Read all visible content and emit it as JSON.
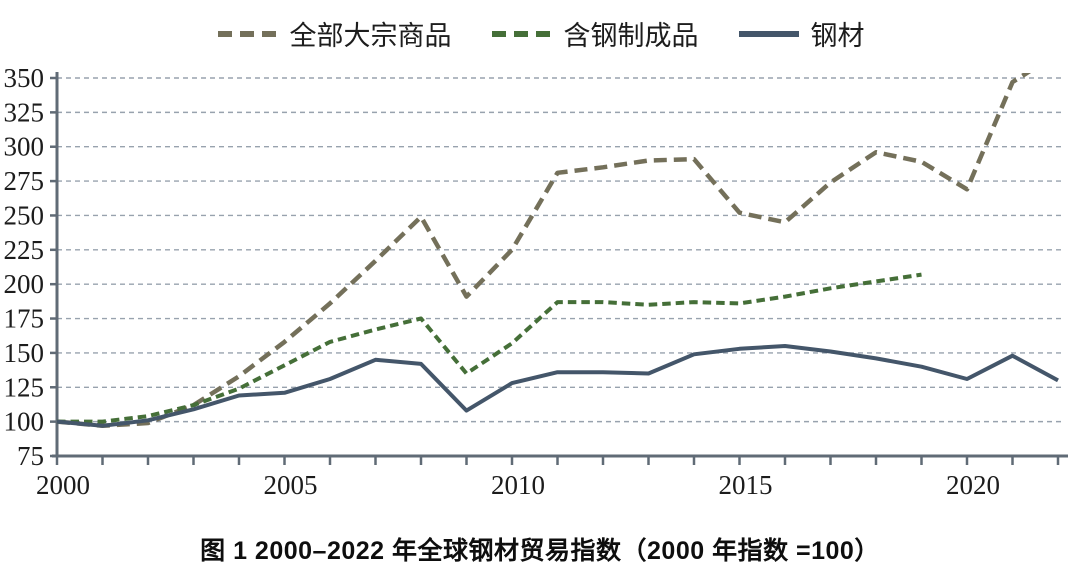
{
  "chart_data": {
    "type": "line",
    "title": "",
    "caption": "图 1  2000–2022 年全球钢材贸易指数（2000 年指数 =100）",
    "x": [
      2000,
      2001,
      2002,
      2003,
      2004,
      2005,
      2006,
      2007,
      2008,
      2009,
      2010,
      2011,
      2012,
      2013,
      2014,
      2015,
      2016,
      2017,
      2018,
      2019,
      2020,
      2021,
      2022
    ],
    "xlim": [
      2000,
      2022
    ],
    "ylim": [
      75,
      350
    ],
    "yticks": [
      75,
      100,
      125,
      150,
      175,
      200,
      225,
      250,
      275,
      300,
      325,
      350
    ],
    "xtick_labels": [
      2000,
      2005,
      2010,
      2015,
      2020
    ],
    "grid": "dashed horizontal",
    "legend_position": "top center",
    "axis_color": "#606b76",
    "grid_color": "#98a2ae",
    "series": [
      {
        "name": "全部大宗商品",
        "style": "dashed",
        "color": "#74705a",
        "dash": "13 7",
        "width": 4.5,
        "values": [
          100,
          97,
          99,
          112,
          133,
          158,
          186,
          217,
          249,
          191,
          225,
          281,
          285,
          290,
          291,
          252,
          245,
          274,
          296,
          289,
          269,
          347,
          368
        ]
      },
      {
        "name": "含钢制成品",
        "style": "dashed",
        "color": "#456f38",
        "dash": "8.5 5",
        "width": 4,
        "values": [
          100,
          100,
          104,
          112,
          124,
          141,
          158,
          167,
          175,
          135,
          157,
          187,
          187,
          185,
          187,
          186,
          191,
          197,
          202,
          207,
          null,
          null,
          null
        ]
      },
      {
        "name": "钢材",
        "style": "solid",
        "color": "#44566a",
        "dash": "",
        "width": 4,
        "values": [
          100,
          97,
          101,
          109,
          119,
          121,
          131,
          145,
          142,
          108,
          128,
          136,
          136,
          135,
          149,
          153,
          155,
          151,
          146,
          140,
          131,
          148,
          130
        ]
      }
    ]
  }
}
